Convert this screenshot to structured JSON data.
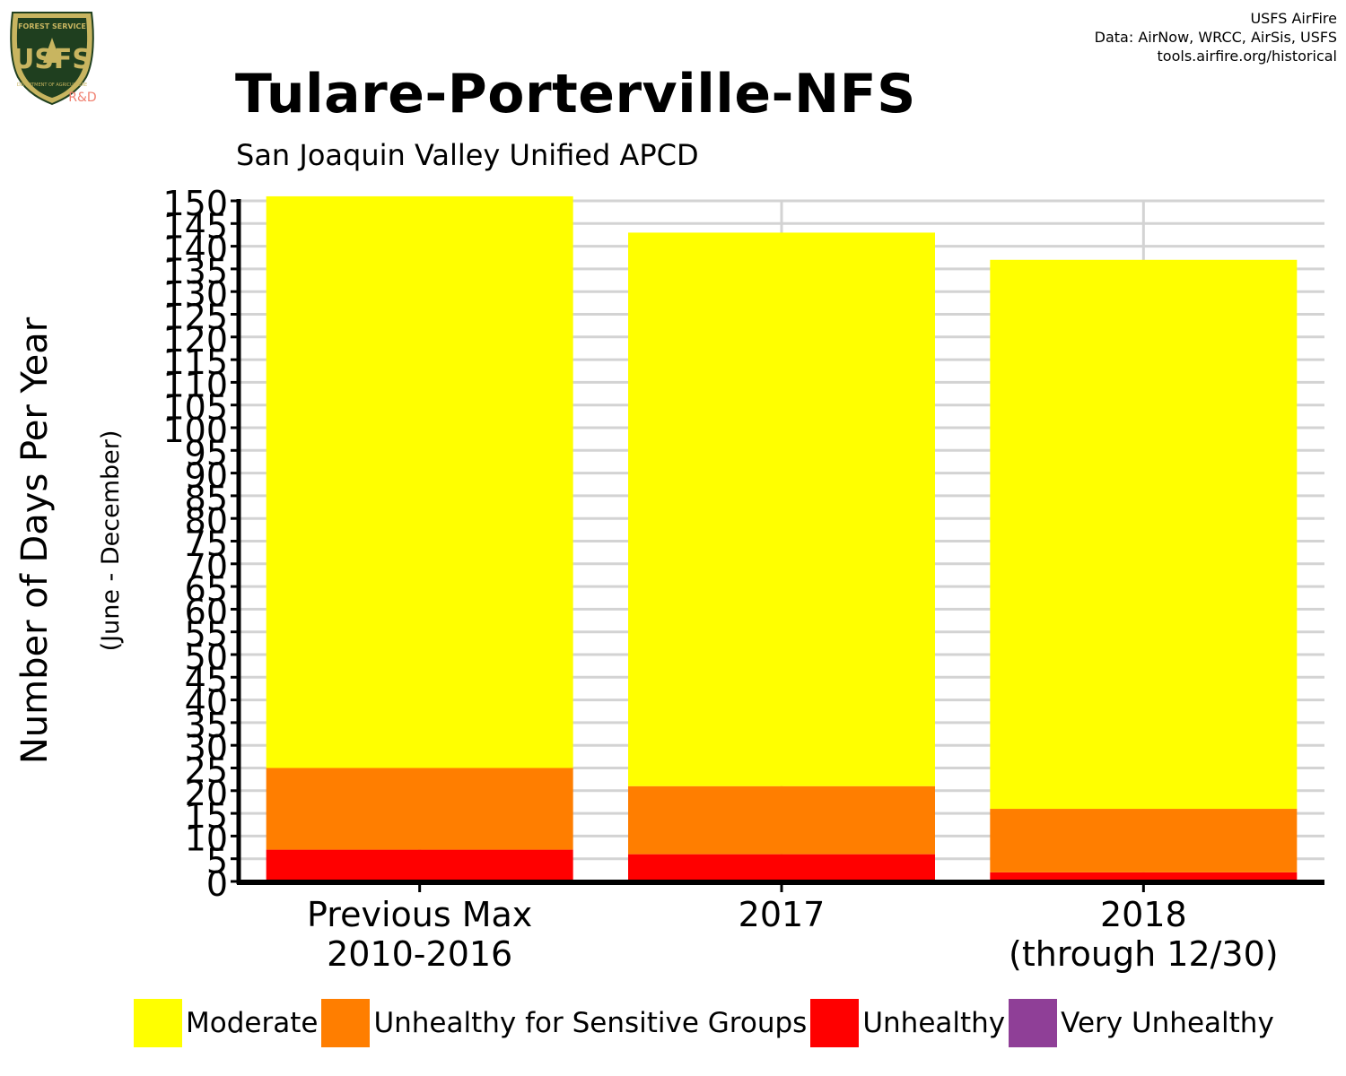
{
  "header": {
    "logo_top_text": "FOREST SERVICE",
    "logo_letters": "USFS",
    "logo_bottom_text": "DEPARTMENT OF AGRICULTURE",
    "logo_rd": "R&D",
    "credits": [
      "USFS AirFire",
      "Data: AirNow, WRCC, AirSis, USFS",
      "tools.airfire.org/historical"
    ]
  },
  "colors": {
    "Moderate": "#ffff00",
    "Unhealthy for Sensitive Groups": "#ff7e00",
    "Unhealthy": "#ff0000",
    "Very Unhealthy": "#8f3f97",
    "grid": "#d3d3d3",
    "logo_green": "#1f3f1f",
    "logo_gold": "#c8b560"
  },
  "chart_data": {
    "type": "bar",
    "stacked": true,
    "title": "Tulare-Porterville-NFS",
    "subtitle": "San Joaquin Valley Unified APCD",
    "ylabel": "Number of Days Per Year",
    "ylabel_sub": "(June - December)",
    "categories": [
      [
        "Previous Max",
        "2010-2016"
      ],
      [
        "2017"
      ],
      [
        "2018",
        "(through 12/30)"
      ]
    ],
    "series": [
      {
        "name": "Unhealthy",
        "values": [
          7,
          6,
          2
        ]
      },
      {
        "name": "Unhealthy for Sensitive Groups",
        "values": [
          18,
          15,
          14
        ]
      },
      {
        "name": "Moderate",
        "values": [
          126,
          122,
          121
        ]
      },
      {
        "name": "Very Unhealthy",
        "values": [
          0,
          0,
          0
        ]
      }
    ],
    "legend_order": [
      "Moderate",
      "Unhealthy for Sensitive Groups",
      "Unhealthy",
      "Very Unhealthy"
    ],
    "ylim": [
      0,
      150
    ],
    "yticks": [
      0,
      5,
      10,
      15,
      20,
      25,
      30,
      35,
      40,
      45,
      50,
      55,
      60,
      65,
      70,
      75,
      80,
      85,
      90,
      95,
      100,
      105,
      110,
      115,
      120,
      125,
      130,
      135,
      140,
      145,
      150
    ],
    "grid": true,
    "legend_position": "bottom"
  }
}
